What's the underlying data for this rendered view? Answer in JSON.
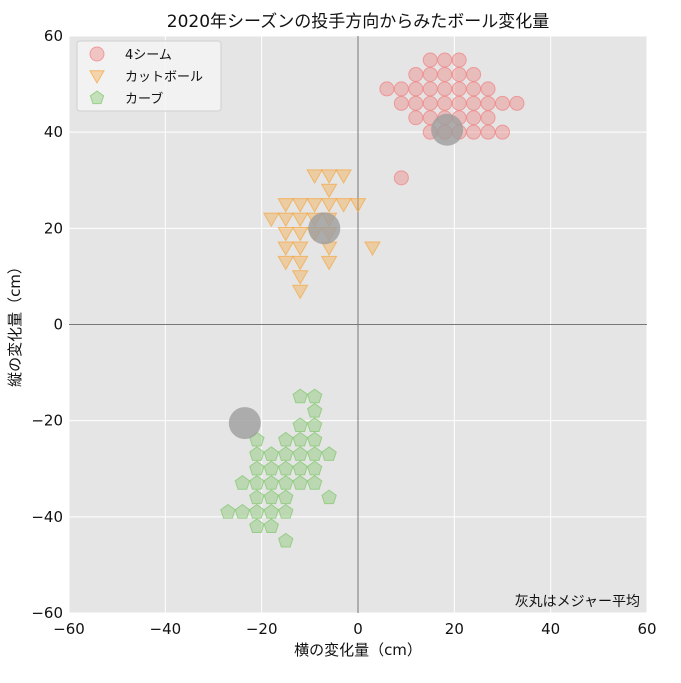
{
  "chart_data": {
    "type": "scatter",
    "title": "2020年シーズンの投手方向からみたボール変化量",
    "xlabel": "横の変化量（cm）",
    "ylabel": "縦の変化量（cm）",
    "xlim": [
      -60,
      60
    ],
    "ylim": [
      -60,
      60
    ],
    "xticks": [
      "−60",
      "−40",
      "−20",
      "0",
      "20",
      "40",
      "60"
    ],
    "yticks": [
      "−60",
      "−40",
      "−20",
      "0",
      "20",
      "40",
      "60"
    ],
    "grid": true,
    "legend_position": "top-left",
    "annotation": "灰丸はメジャー平均",
    "series": [
      {
        "name": "4シーム",
        "marker": "circle",
        "color": "#f08080",
        "points": [
          [
            15,
            55
          ],
          [
            18,
            55
          ],
          [
            21,
            55
          ],
          [
            12,
            52
          ],
          [
            15,
            52
          ],
          [
            18,
            52
          ],
          [
            21,
            52
          ],
          [
            24,
            52
          ],
          [
            6,
            49
          ],
          [
            9,
            49
          ],
          [
            12,
            49
          ],
          [
            15,
            49
          ],
          [
            18,
            49
          ],
          [
            21,
            49
          ],
          [
            24,
            49
          ],
          [
            27,
            49
          ],
          [
            9,
            46
          ],
          [
            12,
            46
          ],
          [
            15,
            46
          ],
          [
            18,
            46
          ],
          [
            21,
            46
          ],
          [
            24,
            46
          ],
          [
            27,
            46
          ],
          [
            30,
            46
          ],
          [
            33,
            46
          ],
          [
            12,
            43
          ],
          [
            15,
            43
          ],
          [
            18,
            43
          ],
          [
            21,
            43
          ],
          [
            24,
            43
          ],
          [
            27,
            43
          ],
          [
            15,
            40
          ],
          [
            18,
            40
          ],
          [
            21,
            40
          ],
          [
            24,
            40
          ],
          [
            27,
            40
          ],
          [
            30,
            40
          ],
          [
            9,
            30.5
          ]
        ]
      },
      {
        "name": "カットボール",
        "marker": "triangle-down",
        "color": "#f4a742",
        "points": [
          [
            -9,
            31
          ],
          [
            -6,
            31
          ],
          [
            -3,
            31
          ],
          [
            -6,
            28
          ],
          [
            -15,
            25
          ],
          [
            -12,
            25
          ],
          [
            -9,
            25
          ],
          [
            -6,
            25
          ],
          [
            -3,
            25
          ],
          [
            0,
            25
          ],
          [
            -18,
            22
          ],
          [
            -15,
            22
          ],
          [
            -12,
            22
          ],
          [
            -9,
            22
          ],
          [
            -6,
            22
          ],
          [
            -15,
            19
          ],
          [
            -12,
            19
          ],
          [
            -9,
            19
          ],
          [
            -6,
            19
          ],
          [
            -15,
            16
          ],
          [
            -12,
            16
          ],
          [
            -6,
            16
          ],
          [
            3,
            16
          ],
          [
            -15,
            13
          ],
          [
            -12,
            13
          ],
          [
            -6,
            13
          ],
          [
            -12,
            10
          ],
          [
            -12,
            7
          ]
        ]
      },
      {
        "name": "カーブ",
        "marker": "pentagon",
        "color": "#7fc66a",
        "points": [
          [
            -12,
            -15
          ],
          [
            -9,
            -15
          ],
          [
            -9,
            -18
          ],
          [
            -12,
            -21
          ],
          [
            -9,
            -21
          ],
          [
            -21,
            -24
          ],
          [
            -15,
            -24
          ],
          [
            -12,
            -24
          ],
          [
            -9,
            -24
          ],
          [
            -21,
            -27
          ],
          [
            -18,
            -27
          ],
          [
            -15,
            -27
          ],
          [
            -12,
            -27
          ],
          [
            -9,
            -27
          ],
          [
            -6,
            -27
          ],
          [
            -21,
            -30
          ],
          [
            -18,
            -30
          ],
          [
            -15,
            -30
          ],
          [
            -12,
            -30
          ],
          [
            -9,
            -30
          ],
          [
            -24,
            -33
          ],
          [
            -21,
            -33
          ],
          [
            -18,
            -33
          ],
          [
            -15,
            -33
          ],
          [
            -12,
            -33
          ],
          [
            -9,
            -33
          ],
          [
            -21,
            -36
          ],
          [
            -18,
            -36
          ],
          [
            -15,
            -36
          ],
          [
            -6,
            -36
          ],
          [
            -27,
            -39
          ],
          [
            -24,
            -39
          ],
          [
            -21,
            -39
          ],
          [
            -18,
            -39
          ],
          [
            -15,
            -39
          ],
          [
            -21,
            -42
          ],
          [
            -18,
            -42
          ],
          [
            -15,
            -45
          ]
        ]
      }
    ],
    "mlb_average": {
      "color": "#9e9e9e",
      "points": [
        [
          18.5,
          40.5
        ],
        [
          -7,
          20
        ],
        [
          -23.5,
          -20.5
        ]
      ]
    }
  }
}
